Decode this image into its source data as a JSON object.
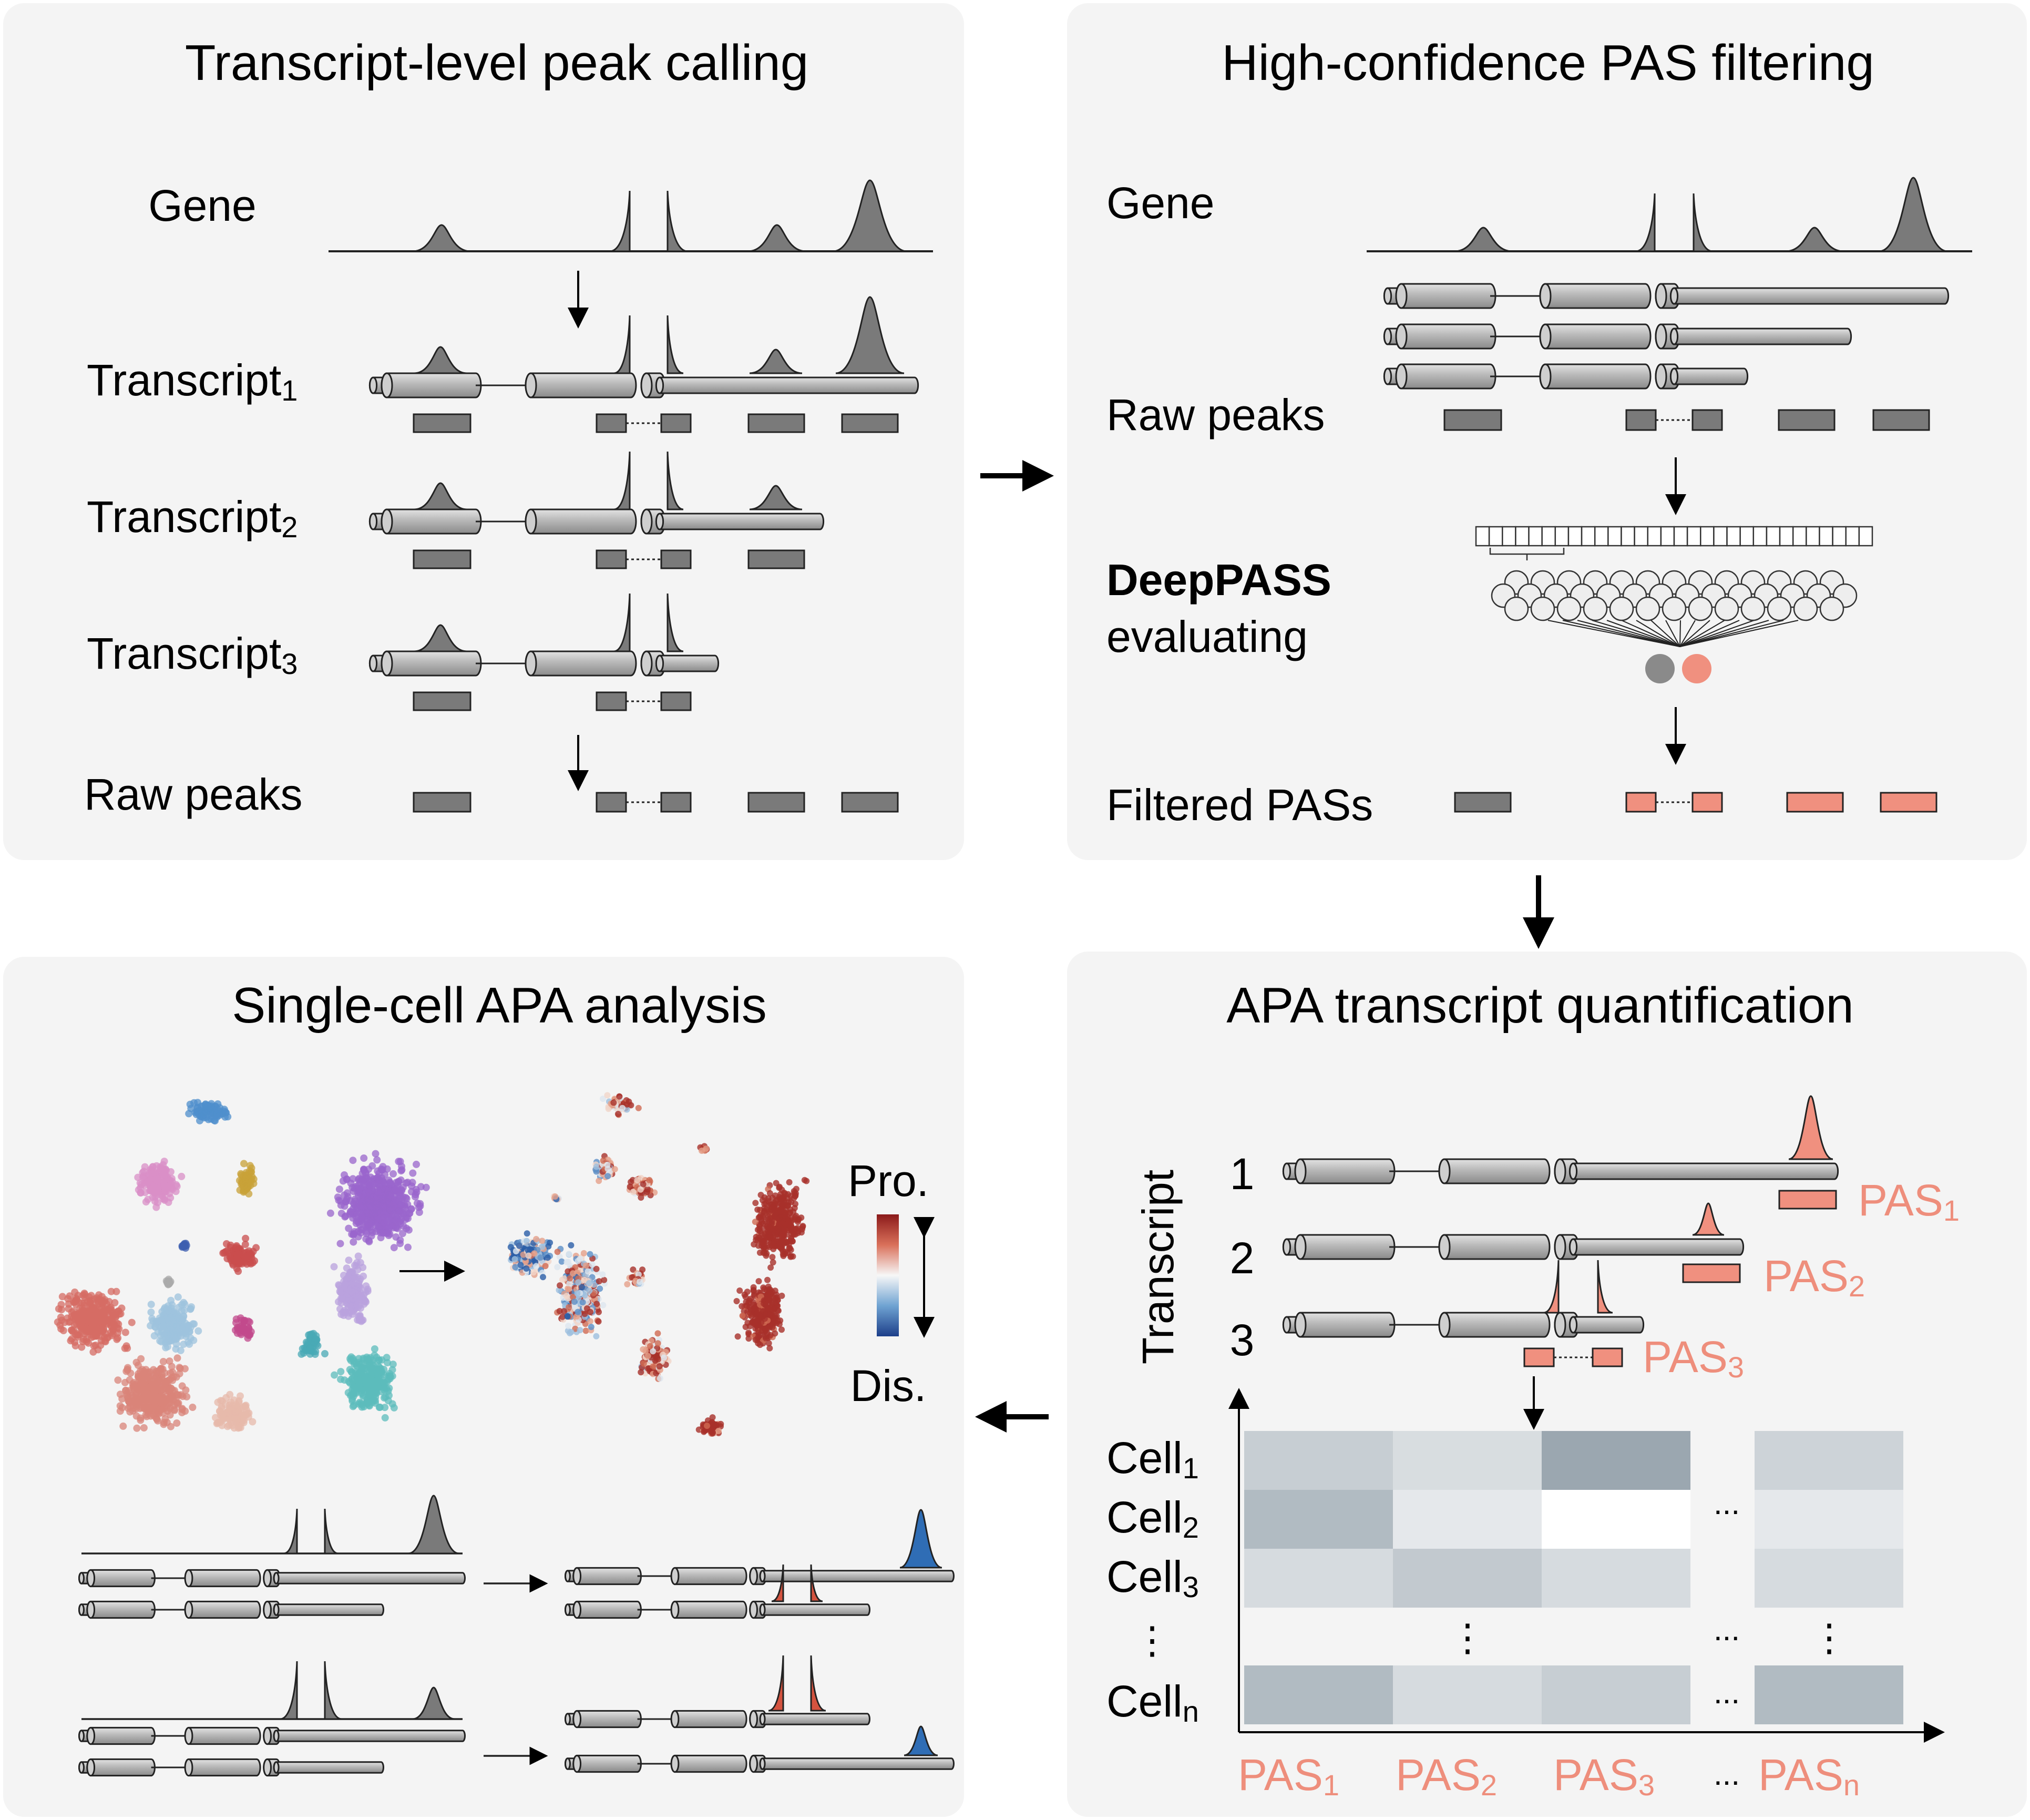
{
  "colors": {
    "panel_bg": "#f4f4f4",
    "gene_gray": "#7a7a7a",
    "pas_salmon": "#f0907f",
    "pas_text": "#ee8e7c",
    "proximal_red": "#d4533f",
    "distal_blue": "#2f6db5",
    "heat_dark": "#7f8f9a",
    "heat_light": "#eef0f2"
  },
  "panels": {
    "tl": {
      "title": "Transcript-level peak calling",
      "gene": "Gene",
      "transcripts": [
        "Transcript",
        "Transcript",
        "Transcript"
      ],
      "transcript_subs": [
        "1",
        "2",
        "3"
      ],
      "raw_peaks": "Raw peaks"
    },
    "tr": {
      "title": "High-confidence PAS filtering",
      "gene": "Gene",
      "raw_peaks": "Raw peaks",
      "model_name": "DeepPASS",
      "model_action": "evaluating",
      "filtered": "Filtered PASs"
    },
    "br": {
      "title": "APA transcript quantification",
      "axis_label": "Transcript",
      "transcript_numbers": [
        "1",
        "2",
        "3"
      ],
      "pas_labels": [
        "PAS",
        "PAS",
        "PAS"
      ],
      "pas_subs": [
        "1",
        "2",
        "3"
      ],
      "cells": [
        "Cell",
        "Cell",
        "Cell",
        "Cell"
      ],
      "cell_subs": [
        "1",
        "2",
        "3",
        "n"
      ],
      "x_labels": [
        "PAS",
        "PAS",
        "PAS",
        "PAS"
      ],
      "x_subs": [
        "1",
        "2",
        "3",
        "n"
      ],
      "ellipsis": "...",
      "vellipsis": "⋮",
      "heatmap": [
        [
          0.35,
          0.2,
          0.75,
          0.3
        ],
        [
          0.55,
          0.08,
          0.0,
          0.08
        ],
        [
          0.22,
          0.4,
          0.22,
          0.22
        ],
        [
          0.55,
          0.22,
          0.35,
          0.55
        ]
      ]
    },
    "bl": {
      "title": "Single-cell APA analysis",
      "colorbar_top": "Pro.",
      "colorbar_bottom": "Dis."
    }
  }
}
